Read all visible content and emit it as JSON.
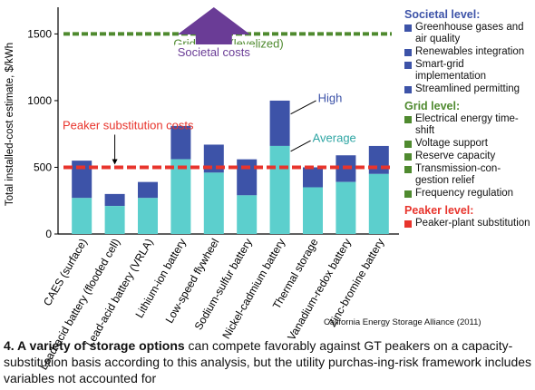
{
  "chart_data": {
    "type": "bar",
    "ylabel": "Total installed-cost estimate, $/kWh",
    "ylim": [
      0,
      1700
    ],
    "yticks": [
      0,
      500,
      1000,
      1500
    ],
    "categories": [
      "CAES (surface)",
      "Lead-acid battery (flooded cell)",
      "Lead-acid battery (VRLA)",
      "Lithium-ion battery",
      "Low-speed flywheel",
      "Sodium-sulfur battery",
      "Nickel-cadmium battery",
      "Thermal storage",
      "Vanadium-redox battery",
      "Zinc-bromine battery"
    ],
    "series": [
      {
        "name": "Average",
        "values": [
          270,
          210,
          270,
          560,
          460,
          290,
          660,
          350,
          390,
          450
        ]
      },
      {
        "name": "High",
        "values": [
          550,
          300,
          390,
          810,
          670,
          560,
          1000,
          500,
          590,
          660
        ]
      }
    ],
    "reference_lines": [
      {
        "label": "Grid costs (levelized)",
        "value": 1500,
        "color": "#4f8a2f"
      },
      {
        "label": "Peaker substitution costs",
        "value": 500,
        "color": "#e8342c"
      }
    ],
    "arrow_label": "Societal costs",
    "high_label": "High",
    "average_label": "Average",
    "colors": {
      "average": "#5ccfcd",
      "high": "#3d53a8",
      "societal": "#6a3c96",
      "grid": "#4f8a2f",
      "peaker": "#e8342c"
    }
  },
  "legend": {
    "groups": [
      {
        "title": "Societal level:",
        "color": "#3d53a8",
        "title_color": "#3d53a8",
        "items": [
          "Greenhouse gases and air quality",
          "Renewables integration",
          "Smart-grid implementation",
          "Streamlined permitting"
        ]
      },
      {
        "title": "Grid level:",
        "color": "#4f8a2f",
        "title_color": "#4f8a2f",
        "items": [
          "Electrical energy time-shift",
          "Voltage support",
          "Reserve capacity",
          "Transmission-con-gestion relief",
          "Frequency regulation"
        ]
      },
      {
        "title": "Peaker level:",
        "color": "#e8342c",
        "title_color": "#e8342c",
        "items": [
          "Peaker-plant substitution"
        ]
      }
    ]
  },
  "source": "California Energy Storage Alliance (2011)",
  "caption": {
    "bold": "4. A variety of storage options",
    "text": " can compete favorably against GT peakers on a capacity-substitution basis according to this analysis, but the utility purchas-ing-risk framework includes variables not accounted for"
  }
}
